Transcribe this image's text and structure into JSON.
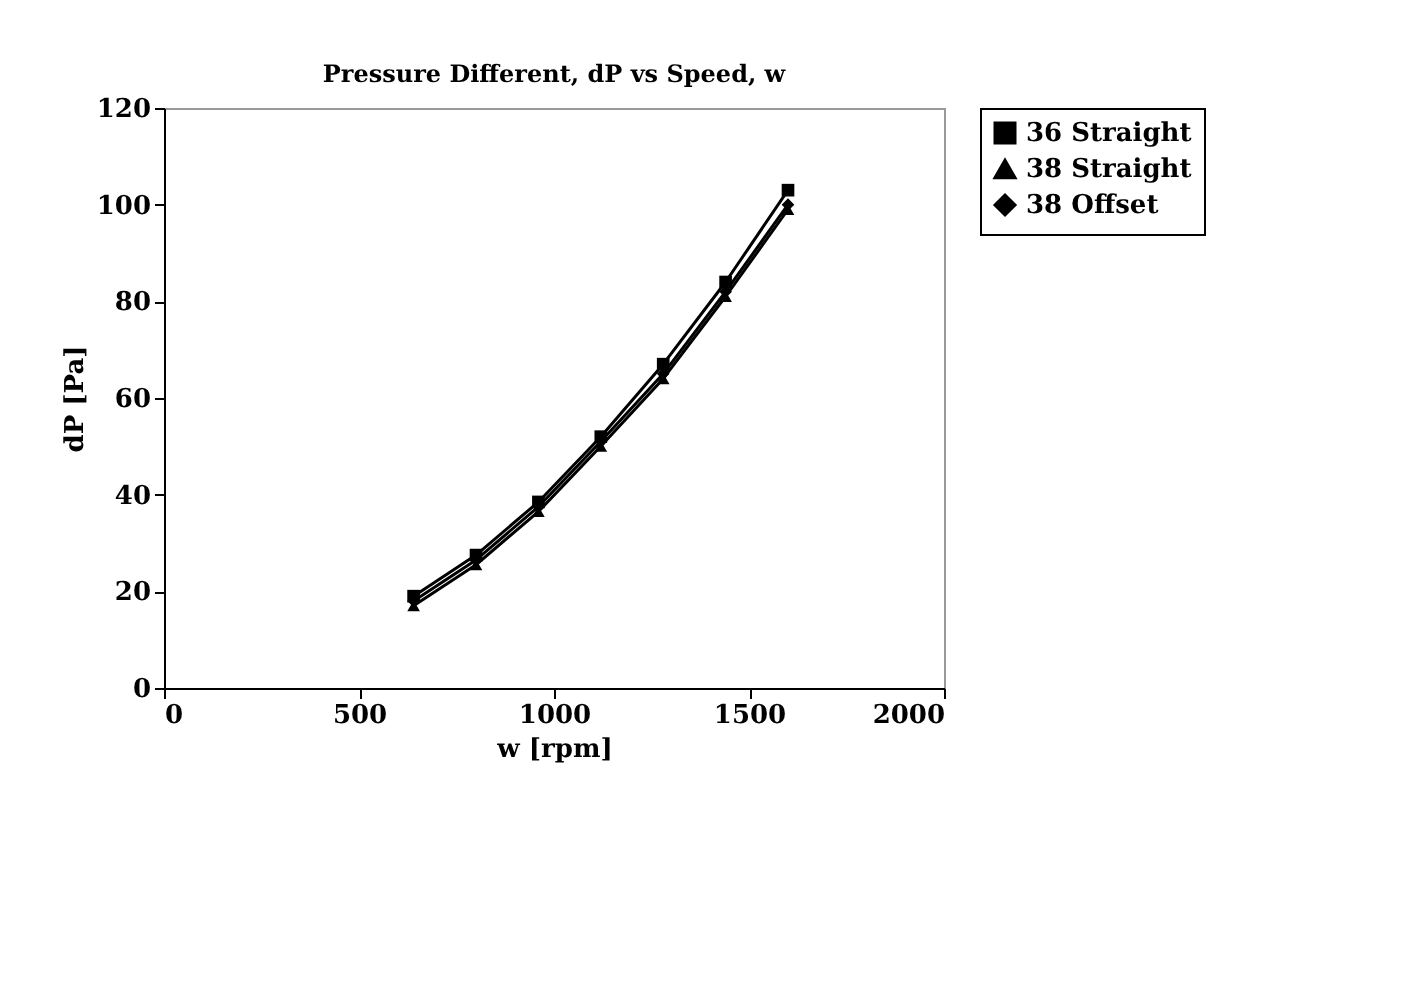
{
  "chart_data": {
    "type": "line",
    "title": "Pressure Different, dP  vs  Speed, w",
    "xlabel": "w [rpm]",
    "ylabel": "dP [Pa]",
    "x": [
      640,
      800,
      960,
      1120,
      1280,
      1440,
      1600
    ],
    "series": [
      {
        "name": "36 Straight",
        "color": "#000000",
        "marker": "square",
        "values": [
          19,
          27.5,
          38.5,
          52,
          67,
          84,
          103
        ]
      },
      {
        "name": "38 Straight",
        "color": "#000000",
        "marker": "triangle",
        "values": [
          17,
          25.5,
          36.5,
          50,
          64,
          81,
          99
        ]
      },
      {
        "name": "38 Offset",
        "color": "#000000",
        "marker": "diamond",
        "values": [
          18,
          26.5,
          37.5,
          51,
          65,
          82,
          100
        ]
      }
    ],
    "xlim": [
      0,
      2000
    ],
    "xticks": [
      0,
      500,
      1000,
      1500,
      2000
    ],
    "ylim": [
      0,
      120
    ],
    "yticks": [
      0,
      20,
      40,
      60,
      80,
      100,
      120
    ],
    "grid": false,
    "legend": "right",
    "line_style": "solid"
  }
}
